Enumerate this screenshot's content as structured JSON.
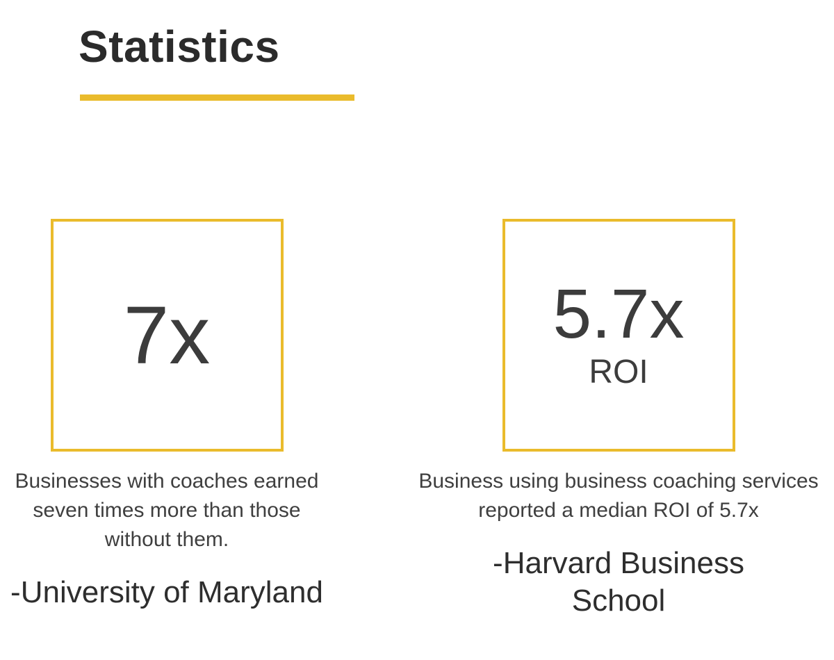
{
  "page": {
    "title": "Statistics",
    "accent_color": "#EABB2C"
  },
  "stats": [
    {
      "value": "7x",
      "sub_value": "",
      "description": "Businesses with coaches earned seven times more than those without them.",
      "source": "-University of Maryland"
    },
    {
      "value": "5.7x",
      "sub_value": "ROI",
      "description": "Business using business coaching services reported a median ROI of 5.7x",
      "source": "-Harvard Business School"
    }
  ]
}
